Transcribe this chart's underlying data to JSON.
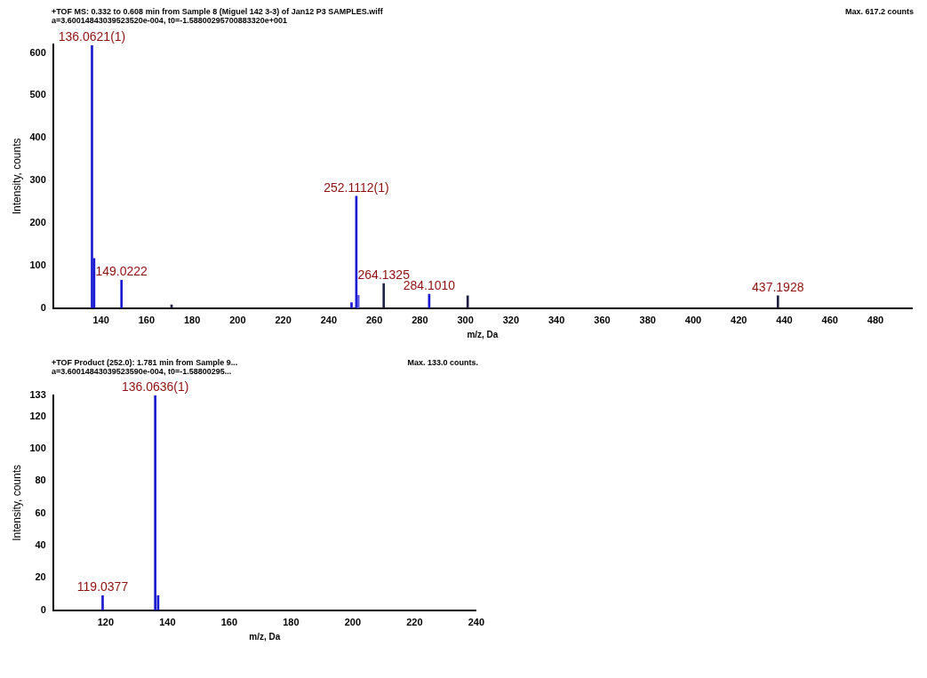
{
  "chart_data": [
    {
      "type": "bar",
      "title": "+TOF MS: 0.332 to 0.608 min from Sample 8 (Miguel 142 3-3) of Jan12 P3 SAMPLES.wiff",
      "subtitle": "a=3.60014843039523520e-004, t0=-1.58800295700883320e+001",
      "xlabel": "m/z, Da",
      "ylabel": "Intensity, counts",
      "annotations": [
        "Max. 617.2 counts",
        {
          "text": "136.0621(1)",
          "x": 136.0621,
          "y": 617
        },
        {
          "text": "149.0222",
          "x": 149.0222,
          "y": 66
        },
        {
          "text": "252.1112(1)",
          "x": 252.1112,
          "y": 263
        },
        {
          "text": "264.1325",
          "x": 264.1325,
          "y": 58
        },
        {
          "text": "284.1010",
          "x": 284.101,
          "y": 33
        },
        {
          "text": "437.1928",
          "x": 437.1928,
          "y": 29
        }
      ],
      "x": [
        136.0621,
        137,
        149.0222,
        171,
        250,
        252.1112,
        253,
        264.1325,
        284.101,
        301,
        437.1928
      ],
      "values": [
        617,
        117,
        66,
        8,
        13,
        263,
        30,
        58,
        33,
        29,
        29
      ],
      "colors": [
        "#1a1ad0",
        "#1a1ad0",
        "#1a1ad0",
        "#202040",
        "#1a1ad0",
        "#1a1ad0",
        "#5a5ae0",
        "#202040",
        "#1a1ad0",
        "#202040",
        "#202040"
      ],
      "xlim": [
        119,
        496
      ],
      "xticks": [
        140,
        160,
        180,
        200,
        220,
        240,
        260,
        280,
        300,
        320,
        340,
        360,
        380,
        400,
        420,
        440,
        460,
        480
      ],
      "ylim": [
        0,
        620
      ],
      "yticks": [
        0,
        100,
        200,
        300,
        400,
        500,
        600
      ]
    },
    {
      "type": "bar",
      "title": "+TOF Product (252.0): 1.781 min from Sample 9...",
      "subtitle": "a=3.60014843039523590e-004, t0=-1.58800295...",
      "xlabel": "m/z, Da",
      "ylabel": "Intensity, counts",
      "annotations": [
        "Max. 133.0 counts.",
        {
          "text": "119.0377",
          "x": 119.0377,
          "y": 9
        },
        {
          "text": "136.0636(1)",
          "x": 136.0636,
          "y": 133
        }
      ],
      "x": [
        119.0377,
        136.0636,
        137
      ],
      "values": [
        9,
        133,
        9
      ],
      "colors": [
        "#1a1ad0",
        "#1a1ad0",
        "#1a1ad0"
      ],
      "xlim": [
        103,
        240
      ],
      "xticks": [
        120,
        140,
        160,
        180,
        200,
        220,
        240
      ],
      "ylim": [
        0,
        133
      ],
      "yticks": [
        0,
        20,
        40,
        60,
        80,
        100,
        120,
        133
      ]
    }
  ]
}
